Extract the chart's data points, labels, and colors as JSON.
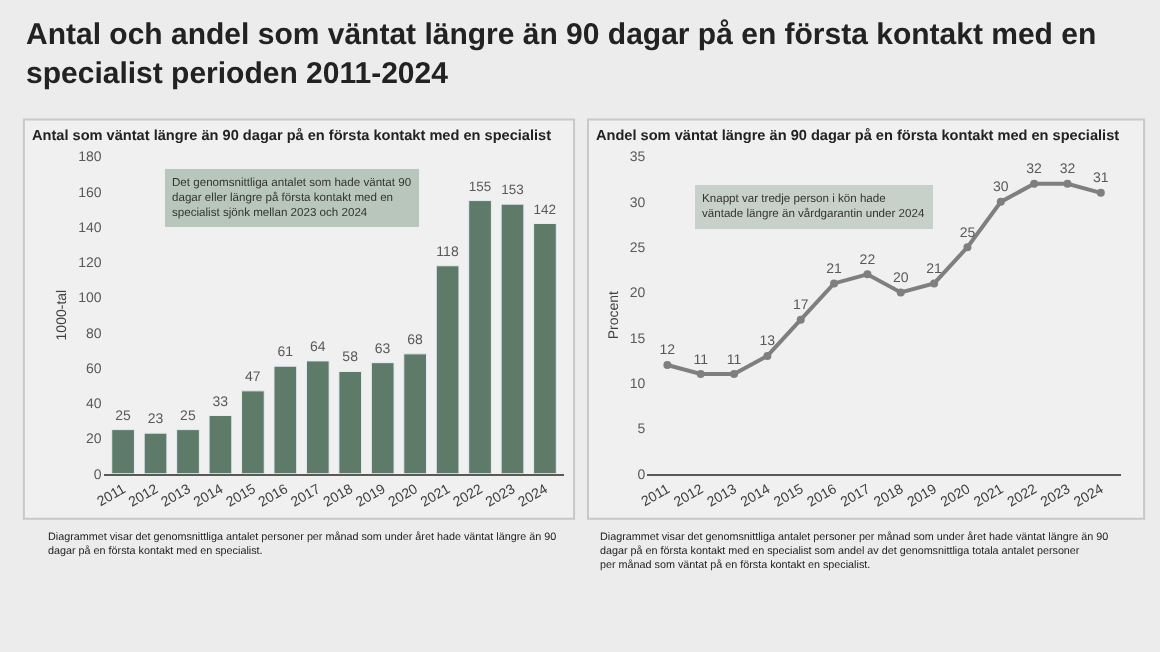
{
  "chart_data": [
    {
      "type": "bar",
      "title": "Antal och andel som väntat längre än 90 dagar på en första kontakt med en specialist perioden 2011-2024",
      "subtitle": "Antal som väntat längre än 90 dagar på en första kontakt med en specialist",
      "ylabel": "1000-tal",
      "categories": [
        "2011",
        "2012",
        "2013",
        "2014",
        "2015",
        "2016",
        "2017",
        "2018",
        "2019",
        "2020",
        "2021",
        "2022",
        "2023",
        "2024"
      ],
      "values": [
        25,
        23,
        25,
        33,
        47,
        61,
        64,
        58,
        63,
        68,
        118,
        155,
        153,
        142
      ],
      "color": "#5e7a68",
      "ylim": [
        0,
        180
      ],
      "yticks": [
        0,
        20,
        40,
        60,
        80,
        100,
        120,
        140,
        160,
        180
      ],
      "data_labels": true,
      "annotations": [
        "Det genomsnittliga antalet som hade väntat 90 dagar eller längre på första kontakt med en specialist sjönk mellan 2023 och 2024",
        "Diagrammet visar det genomsnittliga antalet personer per månad som under året hade väntat längre än 90 dagar på en första kontakt med en specialist."
      ]
    },
    {
      "type": "line",
      "title": "Andel som väntat längre än 90 dagar på en första kontakt med en specialist",
      "ylabel": "Procent",
      "categories": [
        "2011",
        "2012",
        "2013",
        "2014",
        "2015",
        "2016",
        "2017",
        "2018",
        "2019",
        "2020",
        "2021",
        "2022",
        "2023",
        "2024"
      ],
      "values": [
        12,
        11,
        11,
        13,
        17,
        21,
        22,
        20,
        21,
        25,
        30,
        32,
        32,
        31
      ],
      "color": "#7f7f7f",
      "marker": "circle",
      "ylim": [
        0,
        35
      ],
      "yticks": [
        0,
        5,
        10,
        15,
        20,
        25,
        30,
        35
      ],
      "data_labels": true,
      "annotations": [
        "Knappt var tredje person i kön hade väntade längre än vårdgarantin under 2024",
        "Diagrammet visar det genomsnittliga antalet personer per månad som under året hade väntat längre än 90 dagar på en första kontakt med en specialist som andel av det genomsnittliga totala antalet personer per månad som väntat på en första kontakt en specialist."
      ]
    }
  ]
}
